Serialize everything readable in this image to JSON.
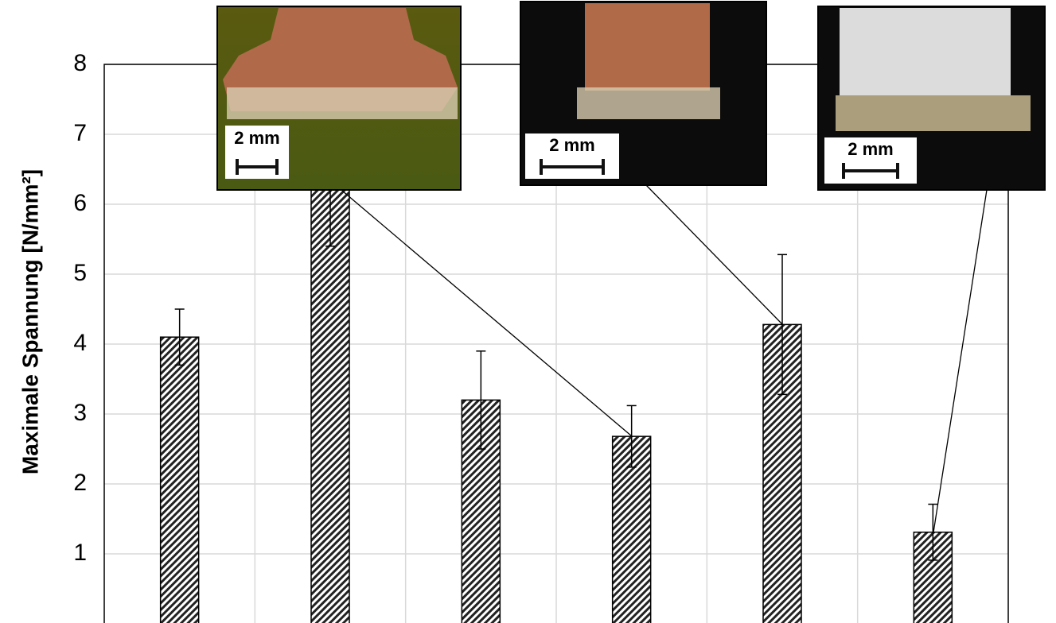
{
  "chart_data": {
    "type": "bar",
    "y_label": "Maximale Spannung [N/mm²]",
    "categories": [
      null,
      null,
      null,
      null,
      null,
      null
    ],
    "values": [
      4.1,
      6.3,
      3.2,
      2.68,
      4.28,
      1.31
    ],
    "errors": [
      0.4,
      0.9,
      0.7,
      0.44,
      1.0,
      0.4
    ],
    "ylim": [
      0,
      8
    ],
    "yticks": [
      1,
      2,
      3,
      4,
      5,
      6,
      7,
      8
    ],
    "grid": true,
    "annotations": [
      "2 mm",
      "2 mm",
      "2 mm"
    ]
  }
}
